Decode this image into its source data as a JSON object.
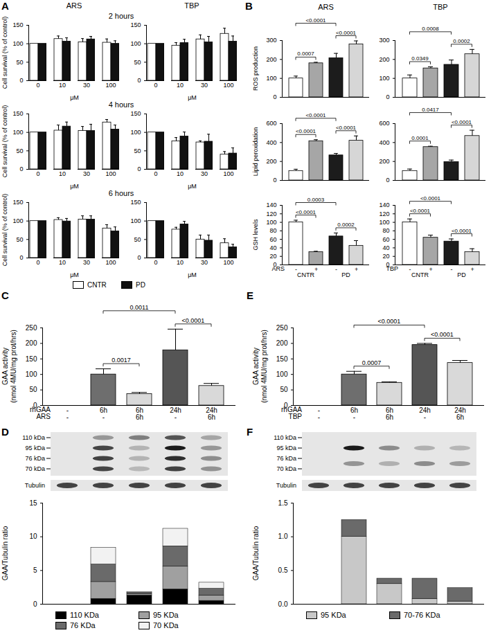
{
  "chart_data": [
    {
      "type": "bar",
      "panel": "A",
      "title": "ARS",
      "subtitle": "2 hours",
      "x_label": "μM",
      "y_label": "Cell survival (% of control)",
      "categories": [
        "0",
        "10",
        "30",
        "100"
      ],
      "series": [
        {
          "name": "CNTR",
          "color": "#ffffff",
          "values": [
            100,
            113,
            104,
            103
          ],
          "errors": [
            0,
            8,
            10,
            10
          ]
        },
        {
          "name": "PD",
          "color": "#111111",
          "values": [
            100,
            106,
            112,
            100
          ],
          "errors": [
            0,
            10,
            8,
            8
          ]
        }
      ],
      "ylim": [
        0,
        150
      ],
      "yticks": [
        0,
        50,
        100,
        150
      ]
    },
    {
      "type": "bar",
      "title": "TBP",
      "x_label": "μM",
      "categories": [
        "0",
        "10",
        "30",
        "100"
      ],
      "series": [
        {
          "name": "CNTR",
          "color": "#ffffff",
          "values": [
            100,
            95,
            112,
            127
          ],
          "errors": [
            0,
            8,
            12,
            15
          ]
        },
        {
          "name": "PD",
          "color": "#111111",
          "values": [
            100,
            102,
            104,
            106
          ],
          "errors": [
            0,
            10,
            16,
            15
          ]
        }
      ],
      "ylim": [
        0,
        150
      ],
      "yticks": [
        0,
        50,
        100,
        150
      ]
    },
    {
      "type": "bar",
      "subtitle": "4 hours",
      "x_label": "μM",
      "y_label": "Cell survival (% of control)",
      "categories": [
        "0",
        "10",
        "30",
        "100"
      ],
      "series": [
        {
          "name": "CNTR",
          "color": "#ffffff",
          "values": [
            100,
            105,
            104,
            127
          ],
          "errors": [
            0,
            15,
            12,
            8
          ]
        },
        {
          "name": "PD",
          "color": "#111111",
          "values": [
            100,
            116,
            104,
            108
          ],
          "errors": [
            0,
            12,
            18,
            12
          ]
        }
      ],
      "ylim": [
        0,
        150
      ],
      "yticks": [
        0,
        50,
        100,
        150
      ]
    },
    {
      "type": "bar",
      "x_label": "μM",
      "categories": [
        "0",
        "10",
        "30",
        "100"
      ],
      "series": [
        {
          "name": "CNTR",
          "color": "#ffffff",
          "values": [
            100,
            76,
            73,
            40
          ],
          "errors": [
            0,
            10,
            4,
            8
          ]
        },
        {
          "name": "PD",
          "color": "#111111",
          "values": [
            100,
            89,
            75,
            43
          ],
          "errors": [
            0,
            12,
            20,
            15
          ]
        }
      ],
      "ylim": [
        0,
        150
      ],
      "yticks": [
        0,
        50,
        100,
        150
      ]
    },
    {
      "type": "bar",
      "subtitle": "6 hours",
      "x_label": "μM",
      "y_label": "Cell survival (% of control)",
      "categories": [
        "0",
        "10",
        "30",
        "100"
      ],
      "series": [
        {
          "name": "CNTR",
          "color": "#ffffff",
          "values": [
            100,
            103,
            104,
            80
          ],
          "errors": [
            0,
            6,
            10,
            10
          ]
        },
        {
          "name": "PD",
          "color": "#111111",
          "values": [
            100,
            99,
            104,
            72
          ],
          "errors": [
            0,
            8,
            10,
            12
          ]
        }
      ],
      "ylim": [
        0,
        150
      ],
      "yticks": [
        0,
        50,
        100,
        150
      ]
    },
    {
      "type": "bar",
      "x_label": "μM",
      "legend": "bottom",
      "categories": [
        "0",
        "10",
        "30",
        "100"
      ],
      "series": [
        {
          "name": "CNTR",
          "color": "#ffffff",
          "values": [
            100,
            77,
            50,
            40
          ],
          "errors": [
            0,
            6,
            12,
            12
          ]
        },
        {
          "name": "PD",
          "color": "#111111",
          "values": [
            100,
            91,
            47,
            29
          ],
          "errors": [
            0,
            8,
            15,
            8
          ]
        }
      ],
      "ylim": [
        0,
        150
      ],
      "yticks": [
        0,
        50,
        100,
        150
      ]
    },
    {
      "type": "bar",
      "panel": "B",
      "title": "ARS",
      "y_label": "ROS production",
      "categories": [
        null,
        null,
        null,
        null
      ],
      "tick_labels": "y",
      "values": [
        100,
        180,
        207,
        280
      ],
      "errors": [
        12,
        5,
        25,
        18
      ],
      "colors": [
        "#ffffff",
        "#a6a6a6",
        "#1c1c1c",
        "#d6d6d6"
      ],
      "ylim": [
        0,
        300
      ],
      "yticks": [
        0,
        100,
        200,
        300
      ],
      "comparisons": [
        {
          "from": 0,
          "to": 1,
          "label": "0.0007"
        },
        {
          "from": 0,
          "to": 2,
          "label": "<0.0001"
        },
        {
          "from": 2,
          "to": 3,
          "label": "<0.0001"
        }
      ]
    },
    {
      "type": "bar",
      "title": "TBP",
      "categories": [
        null,
        null,
        null,
        null
      ],
      "tick_labels": "y",
      "values": [
        100,
        153,
        172,
        228
      ],
      "errors": [
        18,
        8,
        25,
        25
      ],
      "colors": [
        "#ffffff",
        "#a6a6a6",
        "#1c1c1c",
        "#d6d6d6"
      ],
      "ylim": [
        0,
        300
      ],
      "yticks": [
        0,
        100,
        200,
        300
      ],
      "comparisons": [
        {
          "from": 0,
          "to": 1,
          "label": "0.0349"
        },
        {
          "from": 0,
          "to": 2,
          "label": "0.0008"
        },
        {
          "from": 2,
          "to": 3,
          "label": "0.0002"
        }
      ]
    },
    {
      "type": "bar",
      "y_label": "Lipid peroxidation",
      "categories": [
        null,
        null,
        null,
        null
      ],
      "tick_labels": "y",
      "values": [
        100,
        415,
        265,
        420
      ],
      "errors": [
        18,
        15,
        20,
        50
      ],
      "colors": [
        "#ffffff",
        "#a6a6a6",
        "#1c1c1c",
        "#d6d6d6"
      ],
      "ylim": [
        0,
        600
      ],
      "yticks": [
        0,
        200,
        400,
        600
      ],
      "comparisons": [
        {
          "from": 0,
          "to": 1,
          "label": "<0.0001"
        },
        {
          "from": 0,
          "to": 2,
          "label": "<0.0001"
        },
        {
          "from": 2,
          "to": 3,
          "label": "<0.0001"
        }
      ]
    },
    {
      "type": "bar",
      "categories": [
        null,
        null,
        null,
        null
      ],
      "tick_labels": "y",
      "values": [
        100,
        353,
        195,
        470
      ],
      "errors": [
        20,
        8,
        20,
        60
      ],
      "colors": [
        "#ffffff",
        "#a6a6a6",
        "#1c1c1c",
        "#d6d6d6"
      ],
      "ylim": [
        0,
        600
      ],
      "yticks": [
        0,
        200,
        400,
        600
      ],
      "comparisons": [
        {
          "from": 0,
          "to": 1,
          "label": "0.0001"
        },
        {
          "from": 0,
          "to": 2,
          "label": "0.0417"
        },
        {
          "from": 2,
          "to": 3,
          "label": "<0.0001"
        }
      ]
    },
    {
      "type": "bar",
      "y_label": "GSH levels",
      "category_label": "ARS",
      "categories": [
        "-",
        "+",
        "-",
        "+"
      ],
      "groups": [
        {
          "label": "CNTR",
          "from": 0,
          "to": 1
        },
        {
          "label": "PD",
          "from": 2,
          "to": 3
        }
      ],
      "values": [
        100,
        30,
        67,
        45
      ],
      "errors": [
        5,
        2,
        8,
        12
      ],
      "colors": [
        "#ffffff",
        "#a6a6a6",
        "#1c1c1c",
        "#d6d6d6"
      ],
      "ylim": [
        0,
        140
      ],
      "yticks": [
        0,
        20,
        40,
        60,
        80,
        100,
        120,
        140
      ],
      "comparisons": [
        {
          "from": 0,
          "to": 1,
          "label": "<0.0001"
        },
        {
          "from": 0,
          "to": 2,
          "label": "0.0003"
        },
        {
          "from": 2,
          "to": 3,
          "label": "0.0002"
        }
      ]
    },
    {
      "type": "bar",
      "category_label": "TBP",
      "categories": [
        "-",
        "+",
        "-",
        "+"
      ],
      "groups": [
        {
          "label": "CNTR",
          "from": 0,
          "to": 1
        },
        {
          "label": "PD",
          "from": 2,
          "to": 3
        }
      ],
      "values": [
        100,
        64,
        55,
        30
      ],
      "errors": [
        8,
        6,
        6,
        8
      ],
      "colors": [
        "#ffffff",
        "#a6a6a6",
        "#1c1c1c",
        "#d6d6d6"
      ],
      "ylim": [
        0,
        140
      ],
      "yticks": [
        0,
        20,
        40,
        60,
        80,
        100,
        120,
        140
      ],
      "comparisons": [
        {
          "from": 0,
          "to": 1,
          "label": "<0.0001"
        },
        {
          "from": 0,
          "to": 2,
          "label": "<0.0001"
        },
        {
          "from": 2,
          "to": 3,
          "label": "<0.0001"
        }
      ]
    },
    {
      "type": "bar",
      "panel": "C",
      "y_label": [
        "GAA activity",
        "(nmol 4MU/mg prot/hrs)"
      ],
      "category_label": "rhGAA",
      "categories": [
        "-",
        "6h",
        "6h",
        "24h",
        "24h"
      ],
      "treatment": {
        "label": "ARS",
        "values": [
          "-",
          "-",
          "6h",
          "-",
          "6h"
        ]
      },
      "values": [
        null,
        100,
        37,
        178,
        63
      ],
      "errors": [
        null,
        18,
        5,
        68,
        8
      ],
      "colors": [
        null,
        "#6e6e6e",
        "#d9d9d9",
        "#555555",
        "#d9d9d9"
      ],
      "ylim": [
        0,
        250
      ],
      "yticks": [
        0,
        50,
        100,
        150,
        200,
        250
      ],
      "comparisons": [
        {
          "from": 1,
          "to": 2,
          "label": "0.0017"
        },
        {
          "from": 1,
          "to": 3,
          "label": "0.0011"
        },
        {
          "from": 3,
          "to": 4,
          "label": "<0.0001"
        }
      ]
    },
    {
      "type": "bar",
      "panel": "D",
      "stacked": true,
      "blot": {
        "markers": [
          "110 kDa",
          "95 kDa",
          "76 kDa",
          "70 kDa"
        ],
        "loading_control": "Tubulin"
      },
      "y_label": "GAA/Tubulin ratio",
      "categories": [
        null,
        null,
        null,
        null,
        null
      ],
      "tick_labels": "y",
      "series": [
        {
          "name": "110 KDa",
          "color": "#000000",
          "values": [
            0,
            0.8,
            1.3,
            2.2,
            0.5
          ]
        },
        {
          "name": "95 KDa",
          "color": "#a0a0a0",
          "values": [
            0,
            2.5,
            0.2,
            3.4,
            0.8
          ]
        },
        {
          "name": "76 KDa",
          "color": "#6a6a6a",
          "values": [
            0,
            2.6,
            0.2,
            3.0,
            1.0
          ]
        },
        {
          "name": "70 KDa",
          "color": "#f2f2f2",
          "values": [
            0,
            2.5,
            0.1,
            2.6,
            0.9
          ]
        }
      ],
      "ylim": [
        0,
        15
      ],
      "yticks": [
        0,
        5,
        10,
        15
      ],
      "legend": "bottom"
    },
    {
      "type": "bar",
      "panel": "E",
      "y_label": [
        "GAA activity",
        "(nmol 4MU/mg prot/hrs)"
      ],
      "category_label": "rhGAA",
      "categories": [
        "-",
        "6h",
        "6h",
        "24h",
        "24h"
      ],
      "treatment": {
        "label": "TBP",
        "values": [
          "-",
          "-",
          "6h",
          "-",
          "6h"
        ]
      },
      "values": [
        null,
        100,
        73,
        195,
        137
      ],
      "errors": [
        null,
        10,
        3,
        5,
        8
      ],
      "colors": [
        null,
        "#6e6e6e",
        "#d9d9d9",
        "#555555",
        "#d9d9d9"
      ],
      "ylim": [
        0,
        250
      ],
      "yticks": [
        0,
        50,
        100,
        150,
        200,
        250
      ],
      "comparisons": [
        {
          "from": 1,
          "to": 2,
          "label": "0.0007"
        },
        {
          "from": 1,
          "to": 3,
          "label": "<0.0001"
        },
        {
          "from": 3,
          "to": 4,
          "label": "<0.0001"
        }
      ]
    },
    {
      "type": "bar",
      "panel": "F",
      "stacked": true,
      "blot": {
        "markers": [
          "110 kDa",
          "95 kDa",
          "76 kDa",
          "70 kDa"
        ],
        "loading_control": "Tubulin"
      },
      "y_label": "GAA/Tubulin ratio",
      "categories": [
        null,
        null,
        null,
        null,
        null
      ],
      "tick_labels": "y",
      "series": [
        {
          "name": "95 KDa",
          "color": "#c8c8c8",
          "values": [
            0,
            1.0,
            0.3,
            0.08,
            0.04
          ]
        },
        {
          "name": "70-76 KDa",
          "color": "#6a6a6a",
          "values": [
            0,
            0.25,
            0.08,
            0.3,
            0.2
          ]
        }
      ],
      "ylim": [
        0,
        1.5
      ],
      "yticks": [
        {
          "value": 0,
          "label": "0.0"
        },
        0.5,
        {
          "value": 1,
          "label": "1.0"
        },
        1.5
      ],
      "legend": "bottom"
    }
  ]
}
